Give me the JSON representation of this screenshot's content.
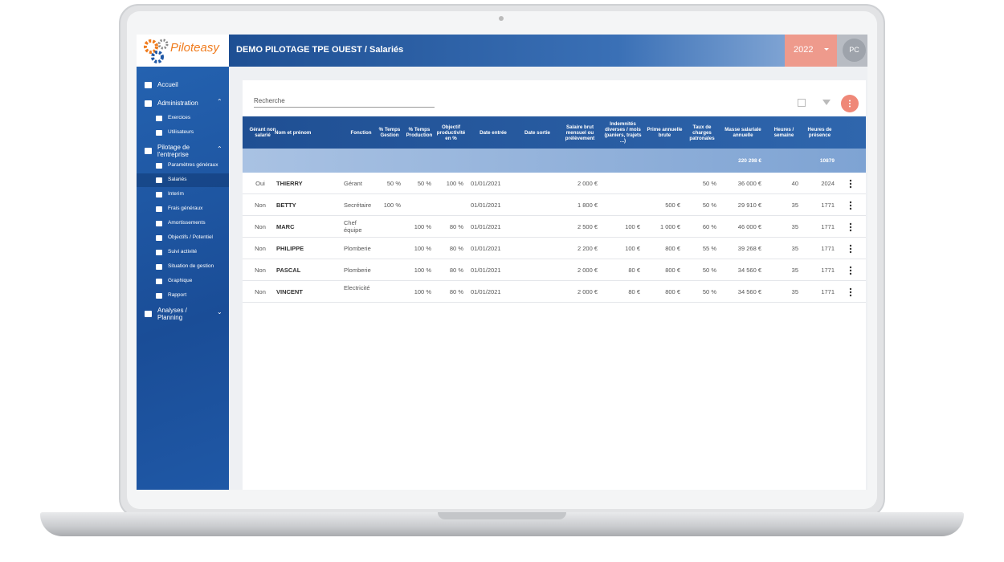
{
  "logo": {
    "name": "Piloteasy"
  },
  "header": {
    "title": "DEMO PILOTAGE TPE OUEST / Salariés",
    "year": "2022",
    "user": "PC"
  },
  "sidebar": [
    {
      "label": "Accueil"
    },
    {
      "label": "Administration",
      "children": [
        "Exercices",
        "Utilisateurs"
      ]
    },
    {
      "label": "Pilotage de l'entreprise",
      "children": [
        "Paramètres généraux",
        "Salariés",
        "Interim",
        "Frais généraux",
        "Amortissements",
        "Objectifs / Potentiel",
        "Suivi activité",
        "Situation de gestion",
        "Graphique",
        "Rapport"
      ]
    },
    {
      "label": "Analyses / Planning"
    }
  ],
  "search": {
    "placeholder": "Recherche"
  },
  "table": {
    "columns": [
      "Gérant non salarié",
      "Nom et prénom",
      "Fonction",
      "% Temps Gestion",
      "% Temps Production",
      "Objectif productivité en %",
      "Date entrée",
      "Date sortie",
      "Salaire brut mensuel ou prélèvement",
      "Indemnités diverses / mois (paniers, trajets ...)",
      "Prime annuelle brute",
      "Taux de charges patronales",
      "Masse salariale annuelle",
      "Heures / semaine",
      "Heures de présence"
    ],
    "totals": {
      "masse_salariale": "220 298 €",
      "heures_presence": "10879"
    },
    "rows": [
      [
        "Oui",
        "THIERRY",
        "Gérant",
        "50 %",
        "50 %",
        "100 %",
        "01/01/2021",
        null,
        "2 000 €",
        null,
        null,
        "50 %",
        "36 000 €",
        "40",
        "2024"
      ],
      [
        "Non",
        "BETTY",
        "Secrétaire",
        "100 %",
        null,
        null,
        "01/01/2021",
        null,
        "1 800 €",
        null,
        "500 €",
        "50 %",
        "29 910 €",
        "35",
        "1771"
      ],
      [
        "Non",
        "MARC",
        "Chef équipe",
        null,
        "100 %",
        "80 %",
        "01/01/2021",
        null,
        "2 500 €",
        "100 €",
        "1 000 €",
        "60 %",
        "46 000 €",
        "35",
        "1771"
      ],
      [
        "Non",
        "PHILIPPE",
        "Plomberie",
        null,
        "100 %",
        "80 %",
        "01/01/2021",
        null,
        "2 200 €",
        "100 €",
        "800 €",
        "55 %",
        "39 268 €",
        "35",
        "1771"
      ],
      [
        "Non",
        "PASCAL",
        "Plomberie",
        null,
        "100 %",
        "80 %",
        "01/01/2021",
        null,
        "2 000 €",
        "80 €",
        "800 €",
        "50 %",
        "34 560 €",
        "35",
        "1771"
      ],
      [
        "Non",
        "VINCENT",
        "Electricité",
        null,
        "100 %",
        "80 %",
        "01/01/2021",
        null,
        "2 000 €",
        "80 €",
        "800 €",
        "50 %",
        "34 560 €",
        "35",
        "1771"
      ]
    ]
  }
}
